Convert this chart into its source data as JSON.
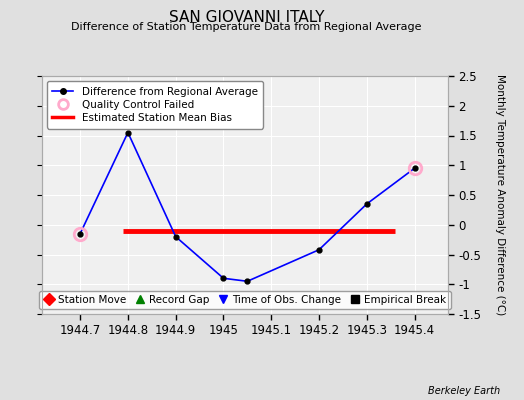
{
  "title": "SAN GIOVANNI ITALY",
  "subtitle": "Difference of Station Temperature Data from Regional Average",
  "ylabel_right": "Monthly Temperature Anomaly Difference (°C)",
  "x": [
    1944.7,
    1944.8,
    1944.9,
    1945.0,
    1945.05,
    1945.2,
    1945.3,
    1945.4
  ],
  "y": [
    -0.15,
    1.55,
    -0.2,
    -0.9,
    -0.95,
    -0.42,
    0.35,
    0.95
  ],
  "qc_failed_indices": [
    0,
    7
  ],
  "bias_y": -0.1,
  "bias_x_start": 1944.79,
  "bias_x_end": 1945.36,
  "xlim": [
    1944.62,
    1945.47
  ],
  "ylim": [
    -1.5,
    2.5
  ],
  "yticks": [
    -1.5,
    -1.0,
    -0.5,
    0.0,
    0.5,
    1.0,
    1.5,
    2.0,
    2.5
  ],
  "ytick_labels": [
    "-1.5",
    "-1",
    "-0.5",
    "0",
    "0.5",
    "1",
    "1.5",
    "2",
    "2.5"
  ],
  "xticks": [
    1944.7,
    1944.8,
    1944.9,
    1945.0,
    1945.1,
    1945.2,
    1945.3,
    1945.4
  ],
  "xtick_labels": [
    "1944.7",
    "1944.8",
    "1944.9",
    "1945",
    "1945.1",
    "1945.2",
    "1945.3",
    "1945.4"
  ],
  "line_color": "blue",
  "line_marker_color": "black",
  "qc_color": "#ffaacc",
  "bias_color": "red",
  "bg_color": "#e0e0e0",
  "plot_bg_color": "#f0f0f0",
  "grid_color": "white",
  "footer_text": "Berkeley Earth",
  "legend1_entries": [
    {
      "label": "Difference from Regional Average"
    },
    {
      "label": "Quality Control Failed"
    },
    {
      "label": "Estimated Station Mean Bias"
    }
  ],
  "legend2_entries": [
    {
      "label": "Station Move",
      "marker": "D",
      "color": "red"
    },
    {
      "label": "Record Gap",
      "marker": "^",
      "color": "green"
    },
    {
      "label": "Time of Obs. Change",
      "marker": "v",
      "color": "blue"
    },
    {
      "label": "Empirical Break",
      "marker": "s",
      "color": "black"
    }
  ]
}
